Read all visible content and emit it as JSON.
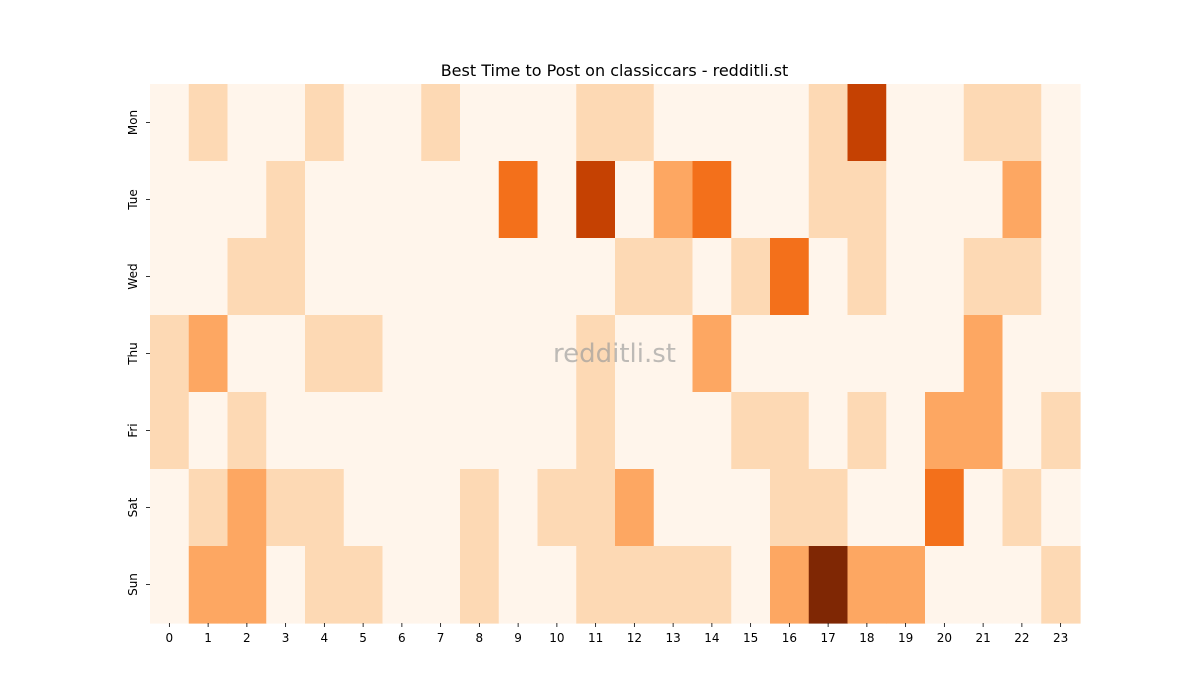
{
  "chart_data": {
    "type": "heatmap",
    "title": "Best Time to Post on classiccars - redditli.st",
    "watermark": "redditli.st",
    "xlabel": "",
    "ylabel": "",
    "x_categories": [
      "0",
      "1",
      "2",
      "3",
      "4",
      "5",
      "6",
      "7",
      "8",
      "9",
      "10",
      "11",
      "12",
      "13",
      "14",
      "15",
      "16",
      "17",
      "18",
      "19",
      "20",
      "21",
      "22",
      "23"
    ],
    "y_categories": [
      "Mon",
      "Tue",
      "Wed",
      "Thu",
      "Fri",
      "Sat",
      "Sun"
    ],
    "values": [
      [
        0,
        1,
        0,
        0,
        1,
        0,
        0,
        1,
        0,
        0,
        0,
        1,
        1,
        0,
        0,
        0,
        0,
        1,
        4,
        0,
        0,
        1,
        1,
        0
      ],
      [
        0,
        0,
        0,
        1,
        0,
        0,
        0,
        0,
        0,
        3,
        0,
        4,
        0,
        2,
        3,
        0,
        0,
        1,
        1,
        0,
        0,
        0,
        2,
        0
      ],
      [
        0,
        0,
        1,
        1,
        0,
        0,
        0,
        0,
        0,
        0,
        0,
        0,
        1,
        1,
        0,
        1,
        3,
        0,
        1,
        0,
        0,
        1,
        1,
        0
      ],
      [
        1,
        2,
        0,
        0,
        1,
        1,
        0,
        0,
        0,
        0,
        0,
        1,
        0,
        0,
        2,
        0,
        0,
        0,
        0,
        0,
        0,
        2,
        0,
        0
      ],
      [
        1,
        0,
        1,
        0,
        0,
        0,
        0,
        0,
        0,
        0,
        0,
        1,
        0,
        0,
        0,
        1,
        1,
        0,
        1,
        0,
        2,
        2,
        0,
        1
      ],
      [
        0,
        1,
        2,
        1,
        1,
        0,
        0,
        0,
        1,
        0,
        1,
        1,
        2,
        0,
        0,
        0,
        1,
        1,
        0,
        0,
        3,
        0,
        1,
        0
      ],
      [
        0,
        2,
        2,
        0,
        1,
        1,
        0,
        0,
        1,
        0,
        0,
        1,
        1,
        1,
        1,
        0,
        2,
        5,
        2,
        2,
        0,
        0,
        0,
        1
      ]
    ],
    "value_range": [
      0,
      5
    ],
    "colormap": "Oranges",
    "level_colors": [
      "#fff5eb",
      "#fdd9b4",
      "#fda762",
      "#f3701b",
      "#c54102",
      "#7f2704"
    ],
    "colorbar": false,
    "grid": false
  }
}
